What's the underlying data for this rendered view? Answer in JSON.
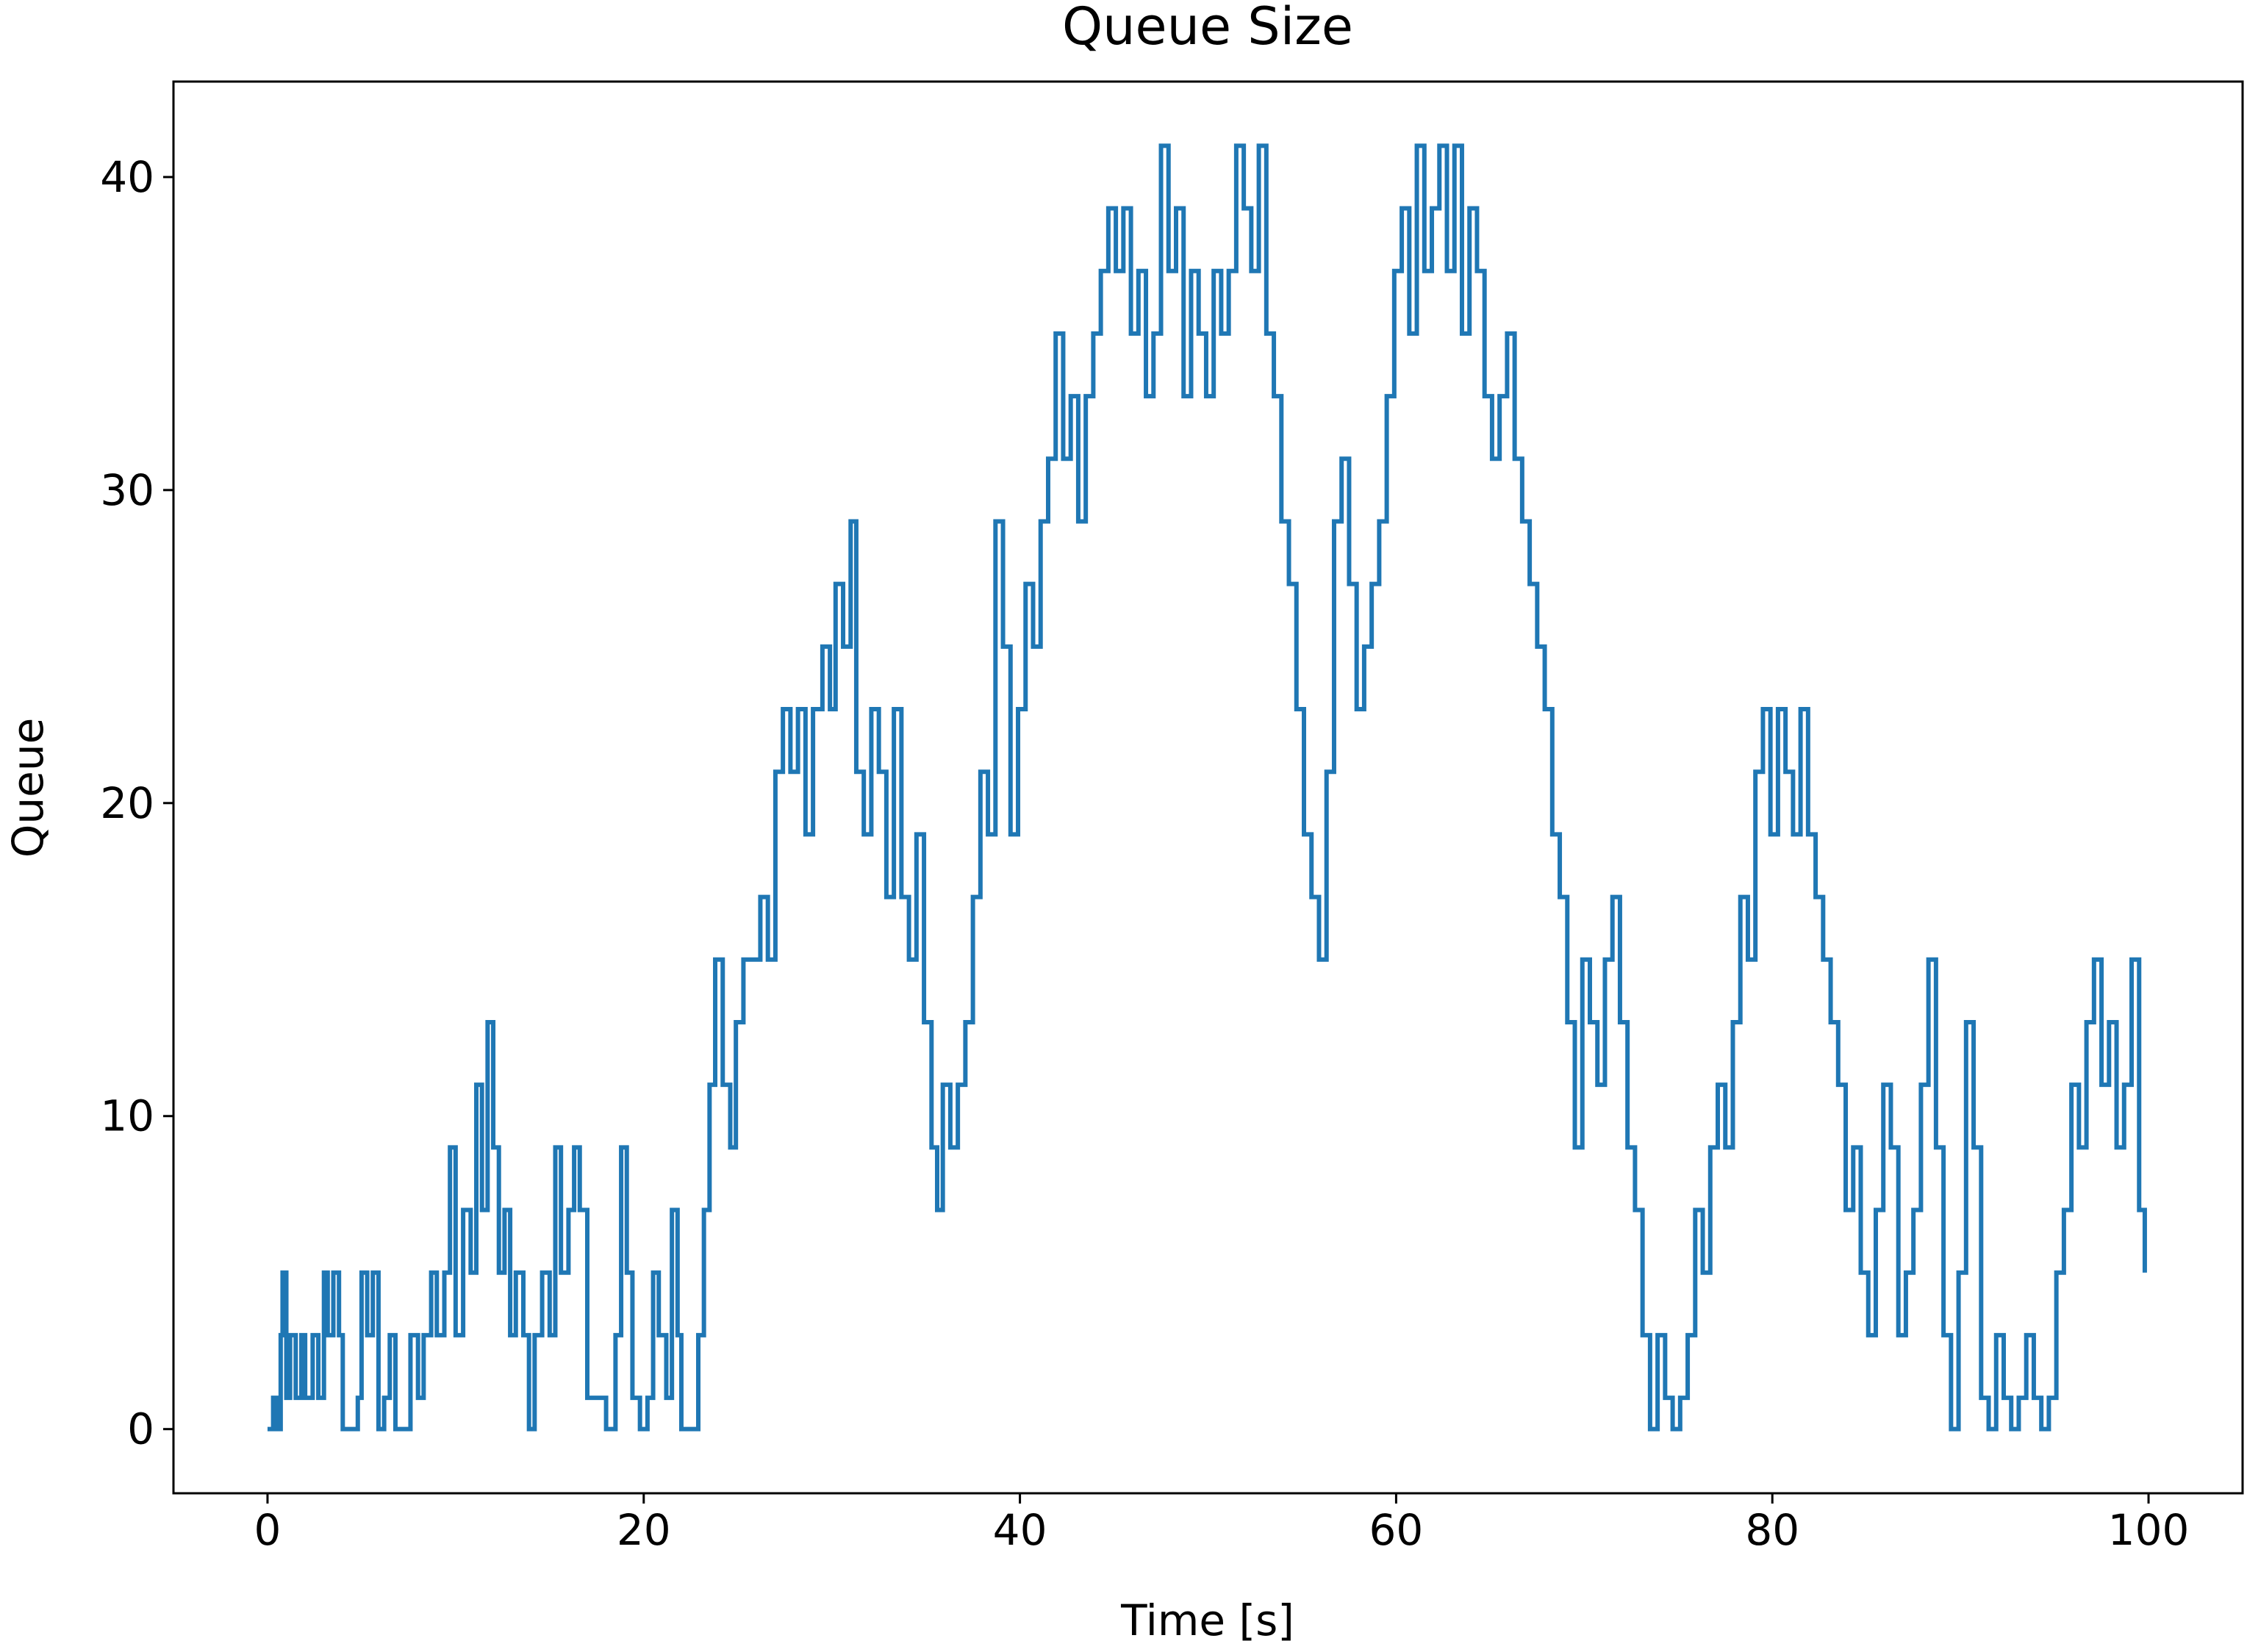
{
  "chart_data": {
    "type": "line",
    "title": "Queue Size",
    "xlabel": "Time [s]",
    "ylabel": "Queue",
    "color": "#1f77b4",
    "step": true,
    "x": [
      0,
      0.3,
      0.5,
      0.7,
      0.8,
      1.0,
      1.2,
      1.5,
      1.8,
      2.0,
      2.4,
      2.7,
      3.0,
      3.2,
      3.5,
      3.8,
      4.0,
      4.5,
      4.8,
      5.0,
      5.3,
      5.6,
      5.9,
      6.2,
      6.5,
      6.8,
      7.3,
      7.6,
      8.0,
      8.3,
      8.7,
      9.0,
      9.4,
      9.7,
      10.0,
      10.4,
      10.8,
      11.1,
      11.4,
      11.7,
      12.0,
      12.3,
      12.6,
      12.9,
      13.2,
      13.6,
      13.9,
      14.2,
      14.6,
      15.0,
      15.3,
      15.6,
      16.0,
      16.3,
      16.6,
      17.0,
      17.5,
      18.0,
      18.5,
      18.8,
      19.1,
      19.4,
      19.8,
      20.2,
      20.5,
      20.8,
      21.2,
      21.5,
      21.8,
      22.0,
      22.6,
      22.9,
      23.2,
      23.5,
      23.8,
      24.2,
      24.6,
      24.9,
      25.3,
      25.8,
      26.2,
      26.6,
      27.0,
      27.4,
      27.8,
      28.2,
      28.6,
      29.0,
      29.5,
      29.9,
      30.2,
      30.6,
      31.0,
      31.3,
      31.7,
      32.1,
      32.5,
      32.9,
      33.3,
      33.7,
      34.1,
      34.5,
      34.9,
      35.3,
      35.6,
      35.9,
      36.3,
      36.7,
      37.1,
      37.5,
      37.9,
      38.3,
      38.7,
      39.1,
      39.5,
      39.9,
      40.3,
      40.7,
      41.1,
      41.5,
      41.9,
      42.3,
      42.7,
      43.1,
      43.5,
      43.9,
      44.3,
      44.7,
      45.1,
      45.5,
      45.9,
      46.3,
      46.7,
      47.1,
      47.5,
      47.9,
      48.3,
      48.7,
      49.1,
      49.5,
      49.9,
      50.3,
      50.7,
      51.1,
      51.5,
      51.9,
      52.3,
      52.7,
      53.1,
      53.5,
      53.9,
      54.3,
      54.7,
      55.1,
      55.5,
      55.9,
      56.3,
      56.7,
      57.1,
      57.5,
      57.9,
      58.3,
      58.7,
      59.1,
      59.5,
      59.9,
      60.3,
      60.7,
      61.1,
      61.5,
      61.9,
      62.3,
      62.7,
      63.1,
      63.5,
      63.9,
      64.3,
      64.7,
      65.1,
      65.5,
      65.9,
      66.3,
      66.7,
      67.1,
      67.5,
      67.9,
      68.3,
      68.7,
      69.1,
      69.5,
      69.9,
      70.3,
      70.7,
      71.1,
      71.5,
      71.9,
      72.3,
      72.7,
      73.1,
      73.5,
      73.9,
      74.3,
      74.7,
      75.1,
      75.5,
      75.9,
      76.3,
      76.7,
      77.1,
      77.5,
      77.9,
      78.3,
      78.7,
      79.1,
      79.5,
      79.9,
      80.3,
      80.7,
      81.1,
      81.5,
      81.9,
      82.3,
      82.7,
      83.1,
      83.5,
      83.9,
      84.3,
      84.7,
      85.1,
      85.5,
      85.9,
      86.3,
      86.7,
      87.1,
      87.5,
      87.9,
      88.3,
      88.7,
      89.1,
      89.5,
      89.9,
      90.3,
      90.7,
      91.1,
      91.5,
      91.9,
      92.3,
      92.7,
      93.1,
      93.5,
      93.9,
      94.3,
      94.7,
      95.1,
      95.5,
      95.9,
      96.3,
      96.7,
      97.1,
      97.5,
      97.9,
      98.3,
      98.7,
      99.1,
      99.5,
      99.8
    ],
    "values": [
      0,
      1,
      0,
      3,
      5,
      1,
      3,
      1,
      3,
      1,
      3,
      1,
      5,
      3,
      5,
      3,
      0,
      0,
      1,
      5,
      3,
      5,
      0,
      1,
      3,
      0,
      0,
      3,
      1,
      3,
      5,
      3,
      5,
      9,
      3,
      7,
      5,
      11,
      7,
      13,
      9,
      5,
      7,
      3,
      5,
      3,
      0,
      3,
      5,
      3,
      9,
      5,
      7,
      9,
      7,
      1,
      1,
      0,
      3,
      9,
      5,
      1,
      0,
      1,
      5,
      3,
      1,
      7,
      3,
      0,
      0,
      3,
      7,
      11,
      15,
      11,
      9,
      13,
      15,
      15,
      17,
      15,
      21,
      23,
      21,
      23,
      19,
      23,
      25,
      23,
      27,
      25,
      29,
      21,
      19,
      23,
      21,
      17,
      23,
      17,
      15,
      19,
      13,
      9,
      7,
      11,
      9,
      11,
      13,
      17,
      21,
      19,
      29,
      25,
      19,
      23,
      27,
      25,
      29,
      31,
      35,
      31,
      33,
      29,
      33,
      35,
      37,
      39,
      37,
      39,
      35,
      37,
      33,
      35,
      41,
      37,
      39,
      33,
      37,
      35,
      33,
      37,
      35,
      37,
      41,
      39,
      37,
      41,
      35,
      33,
      29,
      27,
      23,
      19,
      17,
      15,
      21,
      29,
      31,
      27,
      23,
      25,
      27,
      29,
      33,
      37,
      39,
      35,
      41,
      37,
      39,
      41,
      37,
      41,
      35,
      39,
      37,
      33,
      31,
      33,
      35,
      31,
      29,
      27,
      25,
      23,
      19,
      17,
      13,
      9,
      15,
      13,
      11,
      15,
      17,
      13,
      9,
      7,
      3,
      0,
      3,
      1,
      0,
      1,
      3,
      7,
      5,
      9,
      11,
      9,
      13,
      17,
      15,
      21,
      23,
      19,
      23,
      21,
      19,
      23,
      19,
      17,
      15,
      13,
      11,
      7,
      9,
      5,
      3,
      7,
      11,
      9,
      3,
      5,
      7,
      11,
      15,
      9,
      3,
      0,
      5,
      13,
      9,
      1,
      0,
      3,
      1,
      0,
      1,
      3,
      1,
      0,
      1,
      5,
      7,
      11,
      9,
      13,
      15,
      11,
      13,
      9,
      11,
      15,
      7,
      5
    ],
    "xlim": [
      -5,
      105
    ],
    "ylim": [
      -2.05,
      43.05
    ],
    "xticks": [
      0,
      20,
      40,
      60,
      80,
      100
    ],
    "yticks": [
      0,
      10,
      20,
      30,
      40
    ]
  }
}
